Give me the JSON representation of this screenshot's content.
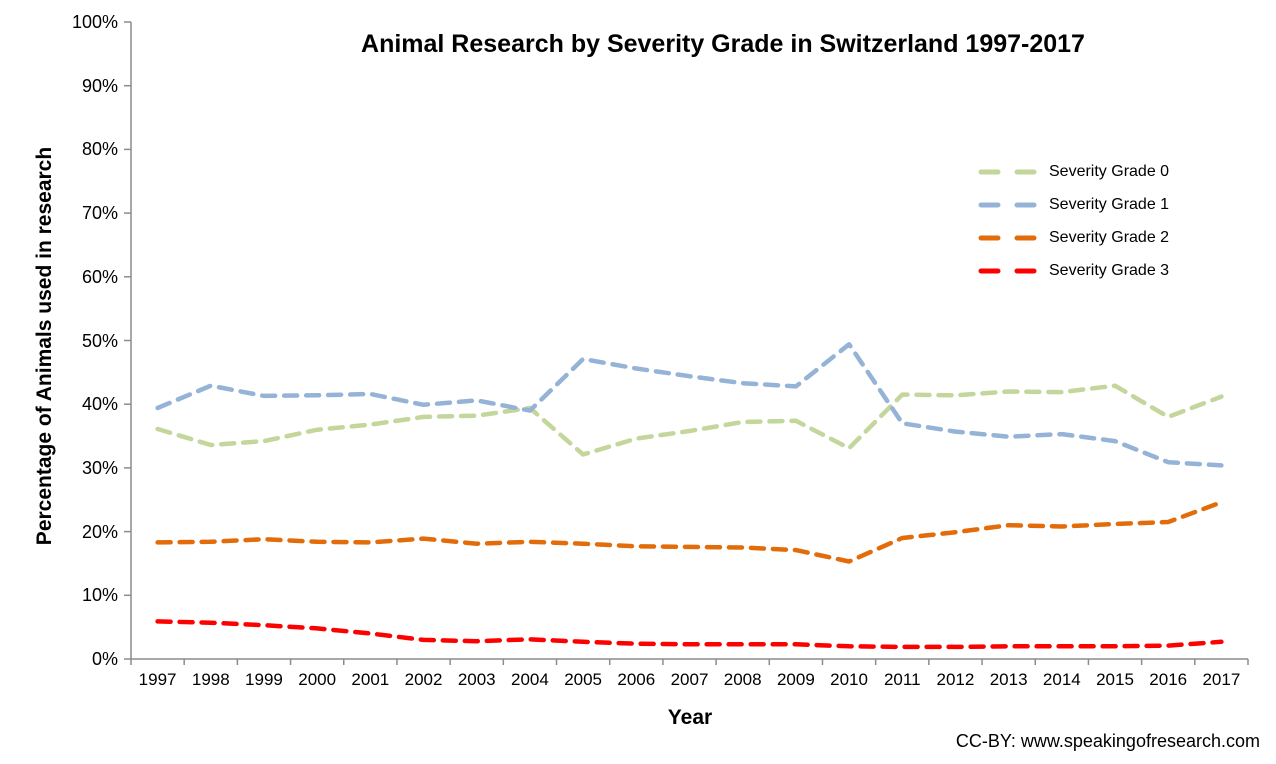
{
  "title": "Animal Research by Severity Grade in Switzerland 1997-2017",
  "attribution": "CC-BY: www.speakingofresearch.com",
  "colors": {
    "axis": "#8c8c8c",
    "background": "#ffffff",
    "text": "#000000",
    "grade0": "#c3d69b",
    "grade1": "#95b3d7",
    "grade2": "#e36c0a",
    "grade3": "#ff0000"
  },
  "chart_data": {
    "type": "line",
    "title": "Animal Research by Severity Grade in Switzerland 1997-2017",
    "xlabel": "Year",
    "ylabel": "Percentage of Animals used in research",
    "ylim": [
      0,
      100
    ],
    "y_tick_step": 10,
    "y_tick_labels": [
      "0%",
      "10%",
      "20%",
      "30%",
      "40%",
      "50%",
      "60%",
      "70%",
      "80%",
      "90%",
      "100%"
    ],
    "grid": false,
    "line_style": "dashed",
    "legend_position": "inside-upper-right",
    "categories": [
      "1997",
      "1998",
      "1999",
      "2000",
      "2001",
      "2002",
      "2003",
      "2004",
      "2005",
      "2006",
      "2007",
      "2008",
      "2009",
      "2010",
      "2011",
      "2012",
      "2013",
      "2014",
      "2015",
      "2016",
      "2017"
    ],
    "series": [
      {
        "name": "Severity Grade 0",
        "color": "#c3d69b",
        "values": [
          36.1,
          33.6,
          34.2,
          36.0,
          36.8,
          38.0,
          38.2,
          39.4,
          32.1,
          34.6,
          35.8,
          37.2,
          37.4,
          33.1,
          41.5,
          41.4,
          42.0,
          41.9,
          42.9,
          38.0,
          41.2
        ]
      },
      {
        "name": "Severity Grade 1",
        "color": "#95b3d7",
        "values": [
          39.4,
          42.9,
          41.3,
          41.4,
          41.6,
          39.9,
          40.6,
          39.0,
          47.1,
          45.6,
          44.4,
          43.3,
          42.8,
          49.4,
          37.0,
          35.7,
          34.9,
          35.3,
          34.2,
          30.9,
          30.4
        ]
      },
      {
        "name": "Severity Grade 2",
        "color": "#e36c0a",
        "values": [
          18.3,
          18.4,
          18.8,
          18.4,
          18.3,
          18.9,
          18.1,
          18.4,
          18.1,
          17.7,
          17.6,
          17.5,
          17.1,
          15.3,
          19.0,
          19.9,
          21.0,
          20.8,
          21.2,
          21.5,
          24.6
        ]
      },
      {
        "name": "Severity Grade 3",
        "color": "#ff0000",
        "values": [
          5.9,
          5.7,
          5.3,
          4.8,
          4.0,
          3.0,
          2.8,
          3.1,
          2.7,
          2.4,
          2.3,
          2.3,
          2.3,
          2.0,
          1.9,
          1.9,
          2.0,
          2.0,
          2.0,
          2.1,
          2.7
        ]
      }
    ]
  }
}
